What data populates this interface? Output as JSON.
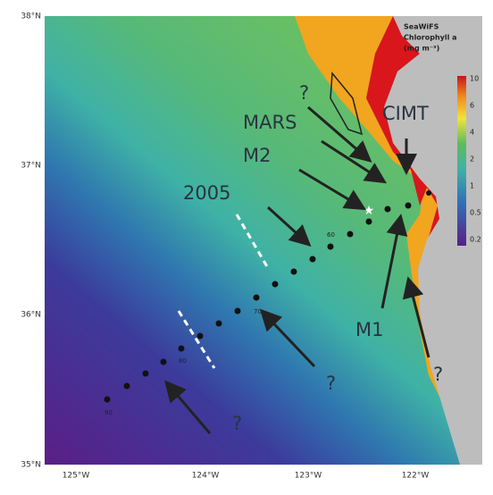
{
  "axes": {
    "lat_labels": [
      "38°N",
      "37°N",
      "36°N",
      "35°N"
    ],
    "lon_labels": [
      "125°W",
      "124°W",
      "123°W",
      "122°W"
    ]
  },
  "colorbar": {
    "title": [
      "SeaWiFS",
      "Chlorophyll a",
      "(mg m⁻³)"
    ],
    "ticks": [
      10,
      6,
      4,
      2,
      1,
      0.5,
      0.2
    ]
  },
  "annotations": [
    "?",
    "MARS",
    "M2",
    "2005",
    "CIMT",
    "M1",
    "?",
    "?",
    "?"
  ],
  "station_labels": [
    "60",
    "70",
    "80",
    "90"
  ]
}
